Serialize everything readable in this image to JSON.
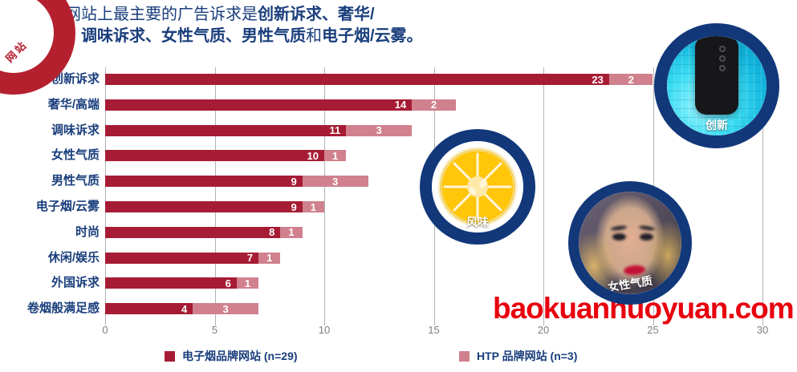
{
  "title": {
    "line1": [
      {
        "t": "品牌网站上最主要的广告诉求是",
        "b": false
      },
      {
        "t": "创新诉求、奢华/",
        "b": true
      }
    ],
    "line2": [
      {
        "t": "高端、调味诉求、女性气质、男性气质",
        "b": true
      },
      {
        "t": "和",
        "b": false
      },
      {
        "t": "电子烟/云雾。",
        "b": true
      }
    ]
  },
  "logo": {
    "text": "网站",
    "color": "#B5202F"
  },
  "watermark": {
    "text": "baokuanhuoyuan.com",
    "color": "#E8000D"
  },
  "chart_data": {
    "type": "bar",
    "orientation": "horizontal",
    "stacked": true,
    "title": "品牌网站上最主要的广告诉求是创新诉求、奢华/高端、调味诉求、女性气质、男性气质和电子烟/云雾。",
    "categories": [
      "创新诉求",
      "奢华/高端",
      "调味诉求",
      "女性气质",
      "男性气质",
      "电子烟/云雾",
      "时尚",
      "休闲/娱乐",
      "外国诉求",
      "卷烟般满足感"
    ],
    "series": [
      {
        "name": "电子烟品牌网站 (n=29)",
        "color": "#A61C35",
        "values": [
          23,
          14,
          11,
          10,
          9,
          9,
          8,
          7,
          6,
          4
        ]
      },
      {
        "name": "HTP 品牌网站 (n=3)",
        "color": "#D0818D",
        "values": [
          2,
          2,
          3,
          1,
          3,
          1,
          1,
          1,
          1,
          3
        ]
      }
    ],
    "xlim": [
      0,
      30
    ],
    "xticks": [
      0,
      5,
      10,
      15,
      20,
      25,
      30
    ],
    "grid": "vertical",
    "legend_position": "bottom"
  },
  "badges": [
    {
      "label": "创新"
    },
    {
      "label": "风味"
    },
    {
      "label": "女性气质"
    }
  ],
  "colors": {
    "navy_text": "#1A3E7C",
    "ring_navy": "#12387A",
    "bar_dark": "#A61C35",
    "bar_light": "#D0818D",
    "gridline": "#B3B3B3",
    "tick_gray": "#7F7F7F"
  }
}
